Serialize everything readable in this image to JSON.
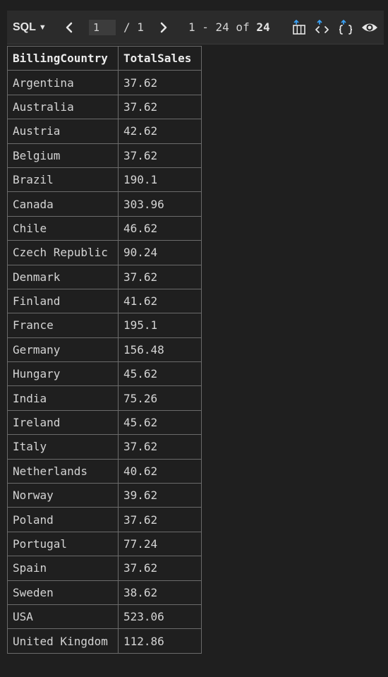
{
  "toolbar": {
    "language": "SQL",
    "page_input_value": "1",
    "page_of": "/ 1",
    "range_prefix": "1 - 24 of ",
    "range_total": "24",
    "icons": [
      "export-csv-icon",
      "export-xml-icon",
      "export-json-icon",
      "preview-eye-icon"
    ],
    "icon_accent": "#3aa0f3"
  },
  "table": {
    "columns": [
      "BillingCountry",
      "TotalSales"
    ],
    "rows": [
      [
        "Argentina",
        "37.62"
      ],
      [
        "Australia",
        "37.62"
      ],
      [
        "Austria",
        "42.62"
      ],
      [
        "Belgium",
        "37.62"
      ],
      [
        "Brazil",
        "190.1"
      ],
      [
        "Canada",
        "303.96"
      ],
      [
        "Chile",
        "46.62"
      ],
      [
        "Czech Republic",
        "90.24"
      ],
      [
        "Denmark",
        "37.62"
      ],
      [
        "Finland",
        "41.62"
      ],
      [
        "France",
        "195.1"
      ],
      [
        "Germany",
        "156.48"
      ],
      [
        "Hungary",
        "45.62"
      ],
      [
        "India",
        "75.26"
      ],
      [
        "Ireland",
        "45.62"
      ],
      [
        "Italy",
        "37.62"
      ],
      [
        "Netherlands",
        "40.62"
      ],
      [
        "Norway",
        "39.62"
      ],
      [
        "Poland",
        "37.62"
      ],
      [
        "Portugal",
        "77.24"
      ],
      [
        "Spain",
        "37.62"
      ],
      [
        "Sweden",
        "38.62"
      ],
      [
        "USA",
        "523.06"
      ],
      [
        "United Kingdom",
        "112.86"
      ]
    ]
  }
}
